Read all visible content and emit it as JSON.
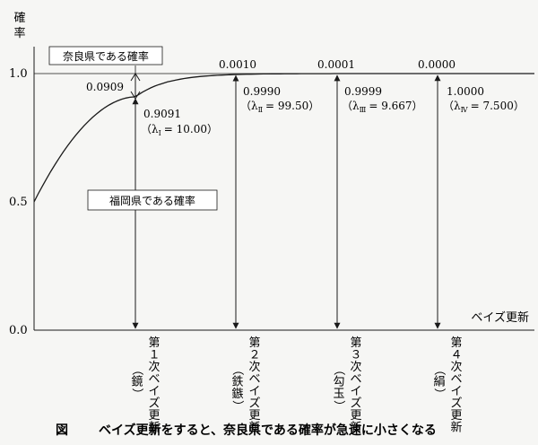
{
  "chart_data": {
    "type": "line",
    "ylabel": "確率",
    "xlabel": "ベイズ更新",
    "ylim": [
      0.0,
      1.0
    ],
    "yticks": [
      "0.0",
      "0.5",
      "1.0"
    ],
    "x": [
      0,
      1,
      2,
      3,
      4
    ],
    "values": [
      0.5,
      0.9091,
      0.999,
      0.9999,
      1.0
    ],
    "series_labels": {
      "nara": "奈良県である確率",
      "fukuoka": "福岡県である確率"
    },
    "gap_labels": [
      "0.0909",
      "0.0010",
      "0.0001",
      "0.0000"
    ],
    "updates": [
      {
        "value_label": "0.9091",
        "lambda_label": "（λ",
        "lambda_sub": "Ⅰ",
        "lambda_value": "= 10.00）",
        "axis_label": [
          "第",
          "１",
          "次",
          "ベ",
          "イ",
          "ズ",
          "更",
          "新"
        ],
        "object_label": [
          "（",
          "鏡",
          "）"
        ]
      },
      {
        "value_label": "0.9990",
        "lambda_label": "（λ",
        "lambda_sub": "Ⅱ",
        "lambda_value": "= 99.50）",
        "axis_label": [
          "第",
          "２",
          "次",
          "ベ",
          "イ",
          "ズ",
          "更",
          "新"
        ],
        "object_label": [
          "（",
          "鉄",
          "鏃",
          "）"
        ]
      },
      {
        "value_label": "0.9999",
        "lambda_label": "（λ",
        "lambda_sub": "Ⅲ",
        "lambda_value": "= 9.667）",
        "axis_label": [
          "第",
          "３",
          "次",
          "ベ",
          "イ",
          "ズ",
          "更",
          "新"
        ],
        "object_label": [
          "（",
          "勾",
          "玉",
          "）"
        ]
      },
      {
        "value_label": "1.0000",
        "lambda_label": "（λ",
        "lambda_sub": "Ⅳ",
        "lambda_value": "= 7.500）",
        "axis_label": [
          "第",
          "４",
          "次",
          "ベ",
          "イ",
          "ズ",
          "更",
          "新"
        ],
        "object_label": [
          "（",
          "絹",
          "）"
        ]
      }
    ],
    "caption_prefix": "図",
    "caption": "ベイズ更新をすると、奈良県である確率が急速に小さくなる"
  }
}
